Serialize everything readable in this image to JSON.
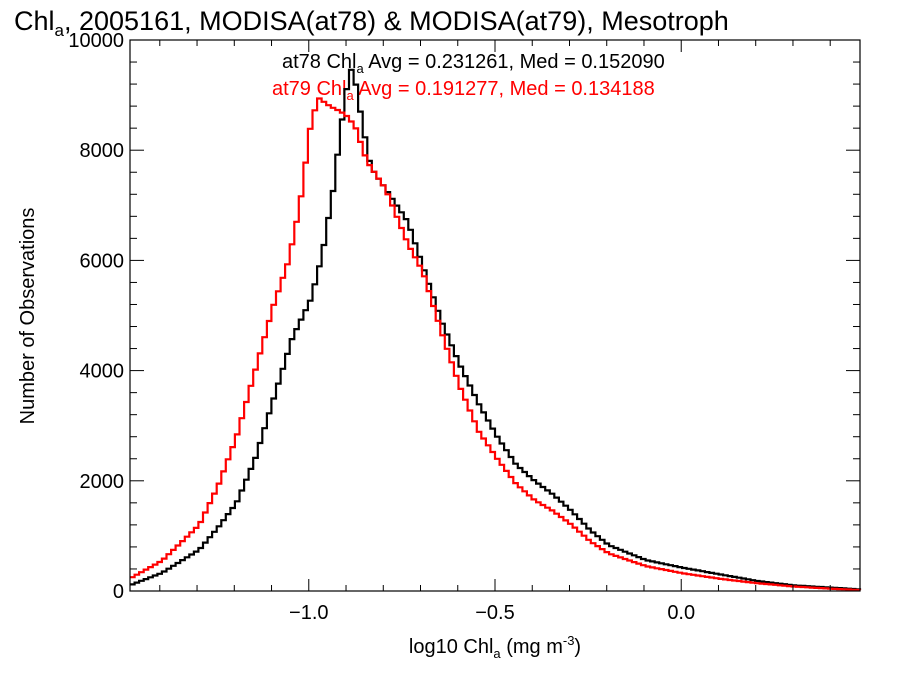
{
  "chart_data": {
    "type": "line",
    "title_parts": {
      "pre": "Chl",
      "sub": "a",
      "post": ", 2005161, MODISA(at78) & MODISA(at79), Mesotroph"
    },
    "xlabel_parts": {
      "pre": "log10 Chl",
      "sub": "a",
      "mid": " (mg m",
      "sup": "-3",
      "post": ")"
    },
    "ylabel": "Number of Observations",
    "xlim": [
      -1.48,
      0.48
    ],
    "ylim": [
      0,
      10000
    ],
    "x_ticks": [
      -1.0,
      -0.5,
      0.0
    ],
    "x_tick_labels": [
      "−1.0",
      "−0.5",
      "0.0"
    ],
    "y_ticks": [
      0,
      2000,
      4000,
      6000,
      8000,
      10000
    ],
    "y_tick_labels": [
      "0",
      "2000",
      "4000",
      "6000",
      "8000",
      "10000"
    ],
    "grid": false,
    "legend_placement": "top-center",
    "series": [
      {
        "name": "at78",
        "color": "#000000",
        "stat_parts": {
          "pre": "at78 Chl",
          "sub": "a",
          "post": " Avg = 0.231261, Med = 0.152090"
        },
        "points": [
          [
            -1.48,
            120
          ],
          [
            -1.4,
            330
          ],
          [
            -1.3,
            750
          ],
          [
            -1.25,
            1150
          ],
          [
            -1.2,
            1600
          ],
          [
            -1.15,
            2400
          ],
          [
            -1.1,
            3500
          ],
          [
            -1.05,
            4600
          ],
          [
            -1.0,
            5300
          ],
          [
            -0.97,
            6100
          ],
          [
            -0.94,
            7300
          ],
          [
            -0.92,
            8400
          ],
          [
            -0.9,
            9300
          ],
          [
            -0.89,
            9500
          ],
          [
            -0.88,
            9200
          ],
          [
            -0.86,
            8400
          ],
          [
            -0.84,
            7700
          ],
          [
            -0.8,
            7300
          ],
          [
            -0.77,
            7000
          ],
          [
            -0.74,
            6700
          ],
          [
            -0.7,
            5900
          ],
          [
            -0.65,
            4900
          ],
          [
            -0.6,
            4100
          ],
          [
            -0.55,
            3400
          ],
          [
            -0.5,
            2800
          ],
          [
            -0.45,
            2300
          ],
          [
            -0.4,
            2000
          ],
          [
            -0.35,
            1750
          ],
          [
            -0.3,
            1450
          ],
          [
            -0.25,
            1100
          ],
          [
            -0.2,
            830
          ],
          [
            -0.1,
            560
          ],
          [
            0.0,
            420
          ],
          [
            0.1,
            300
          ],
          [
            0.2,
            180
          ],
          [
            0.3,
            100
          ],
          [
            0.4,
            60
          ],
          [
            0.48,
            25
          ]
        ]
      },
      {
        "name": "at79",
        "color": "#ff0000",
        "stat_parts": {
          "pre": "at79 Chl",
          "sub": "a",
          "post": " Avg = 0.191277, Med = 0.134188"
        },
        "points": [
          [
            -1.48,
            250
          ],
          [
            -1.4,
            550
          ],
          [
            -1.3,
            1200
          ],
          [
            -1.25,
            1900
          ],
          [
            -1.2,
            2800
          ],
          [
            -1.15,
            4000
          ],
          [
            -1.1,
            5200
          ],
          [
            -1.06,
            6000
          ],
          [
            -1.03,
            7000
          ],
          [
            -1.0,
            8500
          ],
          [
            -0.98,
            8950
          ],
          [
            -0.95,
            8800
          ],
          [
            -0.92,
            8700
          ],
          [
            -0.9,
            8600
          ],
          [
            -0.88,
            8400
          ],
          [
            -0.85,
            7800
          ],
          [
            -0.8,
            7300
          ],
          [
            -0.77,
            6800
          ],
          [
            -0.74,
            6300
          ],
          [
            -0.7,
            5800
          ],
          [
            -0.65,
            4700
          ],
          [
            -0.6,
            3700
          ],
          [
            -0.55,
            2900
          ],
          [
            -0.5,
            2400
          ],
          [
            -0.45,
            1950
          ],
          [
            -0.4,
            1650
          ],
          [
            -0.35,
            1450
          ],
          [
            -0.3,
            1200
          ],
          [
            -0.25,
            900
          ],
          [
            -0.2,
            680
          ],
          [
            -0.1,
            450
          ],
          [
            0.0,
            320
          ],
          [
            0.1,
            220
          ],
          [
            0.2,
            140
          ],
          [
            0.3,
            80
          ],
          [
            0.4,
            40
          ],
          [
            0.48,
            15
          ]
        ]
      }
    ]
  }
}
